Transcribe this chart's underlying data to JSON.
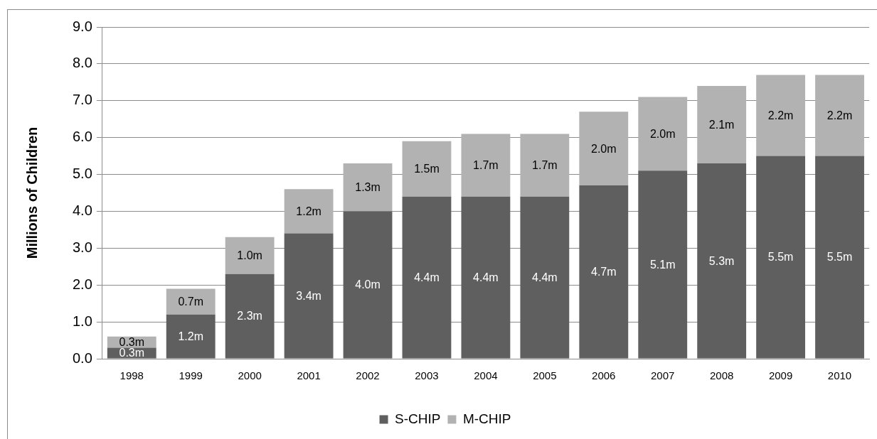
{
  "chart_data": {
    "type": "bar",
    "ylabel": "Millions of Children",
    "categories": [
      "1998",
      "1999",
      "2000",
      "2001",
      "2002",
      "2003",
      "2004",
      "2005",
      "2006",
      "2007",
      "2008",
      "2009",
      "2010"
    ],
    "series": [
      {
        "name": "S-CHIP",
        "color": "#5f5f5f",
        "values": [
          0.3,
          1.2,
          2.3,
          3.4,
          4.0,
          4.4,
          4.4,
          4.4,
          4.7,
          5.1,
          5.3,
          5.5,
          5.5
        ],
        "value_labels": [
          "0.3m",
          "1.2m",
          "2.3m",
          "3.4m",
          "4.0m",
          "4.4m",
          "4.4m",
          "4.4m",
          "4.7m",
          "5.1m",
          "5.3m",
          "5.5m",
          "5.5m"
        ]
      },
      {
        "name": "M-CHIP",
        "color": "#b2b2b2",
        "values": [
          0.3,
          0.7,
          1.0,
          1.2,
          1.3,
          1.5,
          1.7,
          1.7,
          2.0,
          2.0,
          2.1,
          2.2,
          2.2
        ],
        "value_labels": [
          "0.3m",
          "0.7m",
          "1.0m",
          "1.2m",
          "1.3m",
          "1.5m",
          "1.7m",
          "1.7m",
          "2.0m",
          "2.0m",
          "2.1m",
          "2.2m",
          "2.2m"
        ]
      }
    ],
    "stacked": true,
    "ylim": [
      0,
      9
    ],
    "yticks": [
      {
        "value": 0,
        "label": "0.0"
      },
      {
        "value": 1,
        "label": "1.0"
      },
      {
        "value": 2,
        "label": "2.0"
      },
      {
        "value": 3,
        "label": "3.0"
      },
      {
        "value": 4,
        "label": "4.0"
      },
      {
        "value": 5,
        "label": "5.0"
      },
      {
        "value": 6,
        "label": "6.0"
      },
      {
        "value": 7,
        "label": "7.0"
      },
      {
        "value": 8,
        "label": "8.0"
      },
      {
        "value": 9,
        "label": "9.0"
      }
    ],
    "grid": "y",
    "legend": "bottom"
  }
}
